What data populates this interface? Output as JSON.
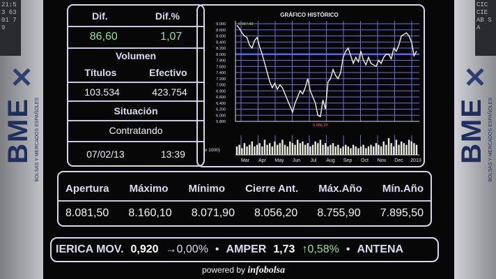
{
  "left_strip_text": "21:53 63 01 79",
  "right_strip_text": "CIC CIE AB SA",
  "logo": {
    "text": "BME",
    "tagline": "BOLSAS Y MERCADOS ESPAÑOLES"
  },
  "summary": {
    "dif_label": "Dif.",
    "difpct_label": "Dif.%",
    "dif_value": "86,60",
    "difpct_value": "1,07",
    "volumen_label": "Volumen",
    "titulos_label": "Títulos",
    "efectivo_label": "Efectivo",
    "titulos_value": "103.534",
    "efectivo_value": "423.754",
    "situacion_label": "Situación",
    "situacion_value": "Contratando",
    "date": "07/02/13",
    "time": "13:39"
  },
  "stats": {
    "headers": [
      "Apertura",
      "Máximo",
      "Mínimo",
      "Cierre Ant.",
      "Máx.Año",
      "Mín.Año"
    ],
    "values": [
      "8.081,50",
      "8.160,10",
      "8.071,90",
      "8.056,20",
      "8.755,90",
      "7.895,50"
    ]
  },
  "ticker": {
    "items": [
      {
        "name": "IERICA MOV.",
        "price": "0,920",
        "arrow": "→",
        "change": "0,00%",
        "color": "#dcdcf2"
      },
      {
        "name": "AMPER",
        "price": "1,73",
        "arrow": "↑",
        "change": "0,58%",
        "color": "#8ee89a"
      },
      {
        "name": "ANTENA",
        "price": "",
        "arrow": "",
        "change": "",
        "color": "#dcdcf2"
      }
    ],
    "separator": "•"
  },
  "footer": {
    "powered": "powered by",
    "brand": "infobolsa"
  },
  "colors": {
    "green": "#8ee89a",
    "grid": "#6e70d8",
    "highlight": "#4f63ff",
    "max_label": "#7fe08a",
    "min_label": "#ff5a78"
  },
  "chart_data": {
    "type": "line",
    "title": "GRÁFICO HISTÓRICO",
    "ylim": [
      5800,
      9000
    ],
    "yticks": [
      "9.000",
      "8.800",
      "8.600",
      "8.400",
      "8.200",
      "8.000",
      "7.800",
      "7.600",
      "7.400",
      "7.200",
      "7.000",
      "6.800",
      "6.600",
      "6.400",
      "6.200",
      "6.000",
      "5.800"
    ],
    "xticks": [
      "Mar",
      "Apr",
      "May",
      "Jun",
      "Jul",
      "Aug",
      "Sep",
      "Oct",
      "Nov",
      "Dec",
      "2013"
    ],
    "max_label": "8.987,40",
    "min_label": "5.956,20",
    "highlight_level": 8000,
    "grid": true,
    "values": [
      8950,
      8850,
      8700,
      8600,
      8550,
      8300,
      8200,
      8450,
      8550,
      8250,
      8000,
      7700,
      7400,
      7100,
      6900,
      7050,
      6850,
      7000,
      6900,
      6700,
      6500,
      6300,
      6100,
      6400,
      6600,
      6800,
      6700,
      6900,
      7200,
      6800,
      6600,
      6400,
      6000,
      5956,
      6500,
      6200,
      7100,
      7200,
      7500,
      7300,
      7200,
      7400,
      7900,
      8100,
      8200,
      7950,
      7700,
      7900,
      7750,
      8100,
      7800,
      7650,
      7900,
      7700,
      7650,
      7600,
      7800,
      7700,
      7900,
      8000,
      8000,
      7850,
      8200,
      8100,
      8300,
      8600,
      8650,
      8700,
      8600,
      8400,
      7950,
      8100
    ],
    "volume_label": "(x 1000)",
    "volume": [
      5,
      6,
      4,
      7,
      5,
      6,
      8,
      5,
      6,
      7,
      5,
      9,
      6,
      7,
      5,
      8,
      6,
      7,
      9,
      6,
      5,
      8,
      7,
      6,
      9,
      7,
      8,
      6,
      7,
      5,
      6,
      8,
      7,
      9,
      6,
      7,
      5,
      6,
      7,
      5,
      6,
      4,
      5,
      6,
      5,
      4,
      6,
      5,
      4,
      5,
      6,
      4,
      5,
      6,
      5,
      7,
      6,
      5,
      8,
      6,
      10,
      7,
      5,
      9,
      6,
      8,
      7,
      6,
      9,
      8,
      7,
      6
    ]
  }
}
